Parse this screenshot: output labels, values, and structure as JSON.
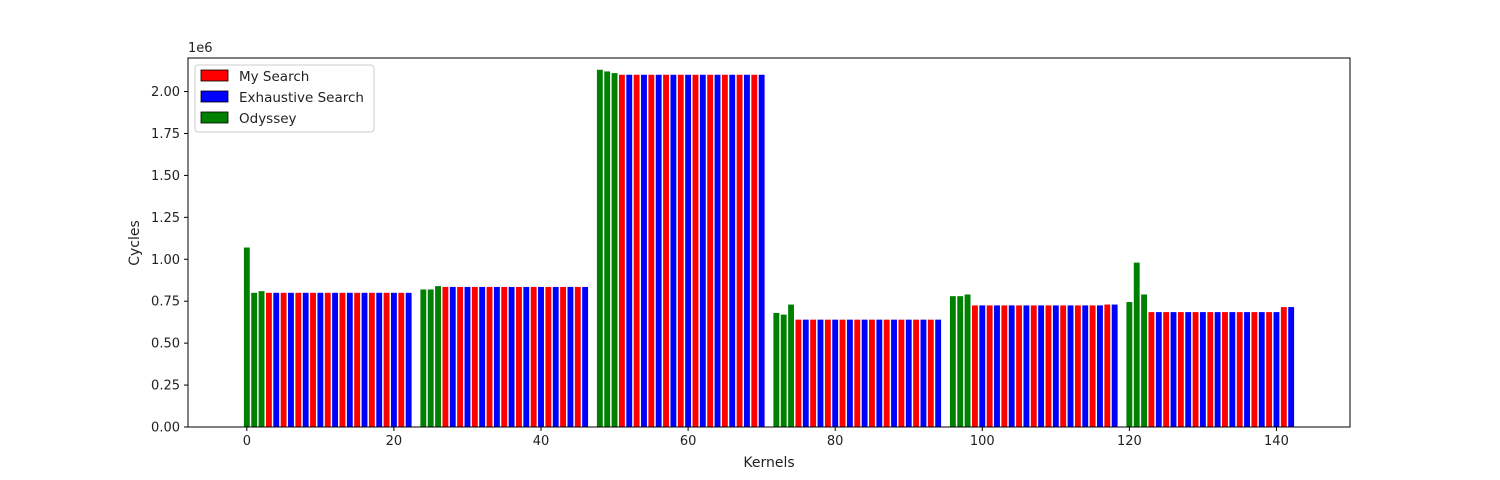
{
  "chart_data": {
    "type": "bar",
    "xlabel": "Kernels",
    "ylabel": "Cycles",
    "y_offset_label": "1e6",
    "xlim": [
      -8,
      150
    ],
    "ylim": [
      0,
      2.2
    ],
    "x_ticks": [
      0,
      20,
      40,
      60,
      80,
      100,
      120,
      140
    ],
    "y_ticks": [
      0.0,
      0.25,
      0.5,
      0.75,
      1.0,
      1.25,
      1.5,
      1.75,
      2.0
    ],
    "y_tick_labels": [
      "0.00",
      "0.25",
      "0.50",
      "0.75",
      "1.00",
      "1.25",
      "1.50",
      "1.75",
      "2.00"
    ],
    "x_tick_labels": [
      "0",
      "20",
      "40",
      "60",
      "80",
      "100",
      "120",
      "140"
    ],
    "grid": false,
    "legend_position": "top-left",
    "series": [
      {
        "name": "My Search",
        "color": "#ff0000"
      },
      {
        "name": "Exhaustive Search",
        "color": "#0000ff"
      },
      {
        "name": "Odyssey",
        "color": "#008000"
      }
    ],
    "groups": [
      {
        "start": 0,
        "odyssey": [
          1.07,
          0.8,
          0.81
        ],
        "search_start_value": 0.8,
        "search_values": [
          0.8,
          0.8,
          0.8,
          0.8,
          0.8,
          0.8,
          0.8,
          0.8,
          0.8,
          0.8,
          0.8,
          0.8,
          0.8,
          0.8,
          0.8,
          0.8,
          0.8,
          0.8,
          0.8,
          0.8
        ]
      },
      {
        "start": 24,
        "odyssey": [
          0.82,
          0.82,
          0.84
        ],
        "search_values": [
          0.835,
          0.835,
          0.835,
          0.835,
          0.835,
          0.835,
          0.835,
          0.835,
          0.835,
          0.835,
          0.835,
          0.835,
          0.835,
          0.835,
          0.835,
          0.835,
          0.835,
          0.835,
          0.835,
          0.835
        ]
      },
      {
        "start": 48,
        "odyssey": [
          2.13,
          2.12,
          2.11
        ],
        "search_values": [
          2.1,
          2.1,
          2.1,
          2.1,
          2.1,
          2.1,
          2.1,
          2.1,
          2.1,
          2.1,
          2.1,
          2.1,
          2.1,
          2.1,
          2.1,
          2.1,
          2.1,
          2.1,
          2.1,
          2.1
        ]
      },
      {
        "start": 72,
        "odyssey": [
          0.68,
          0.67,
          0.73
        ],
        "search_values": [
          0.64,
          0.64,
          0.64,
          0.64,
          0.64,
          0.64,
          0.64,
          0.64,
          0.64,
          0.64,
          0.64,
          0.64,
          0.64,
          0.64,
          0.64,
          0.64,
          0.64,
          0.64,
          0.64,
          0.64
        ]
      },
      {
        "start": 96,
        "odyssey": [
          0.78,
          0.78,
          0.79
        ],
        "search_values": [
          0.725,
          0.725,
          0.725,
          0.725,
          0.725,
          0.725,
          0.725,
          0.725,
          0.725,
          0.725,
          0.725,
          0.725,
          0.725,
          0.725,
          0.725,
          0.725,
          0.725,
          0.725,
          0.73,
          0.73
        ]
      },
      {
        "start": 120,
        "odyssey": [
          0.745,
          0.98,
          0.79
        ],
        "search_values": [
          0.685,
          0.685,
          0.685,
          0.685,
          0.685,
          0.685,
          0.685,
          0.685,
          0.685,
          0.685,
          0.685,
          0.685,
          0.685,
          0.685,
          0.685,
          0.685,
          0.685,
          0.685,
          0.715,
          0.715
        ]
      }
    ]
  }
}
